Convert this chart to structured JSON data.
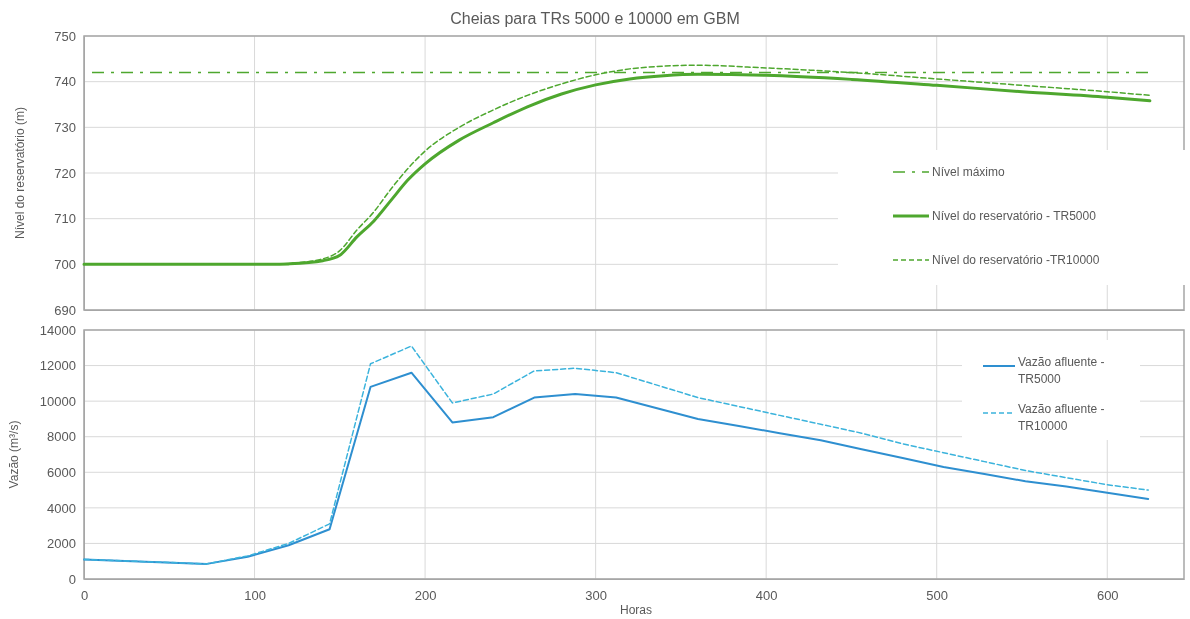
{
  "chart_data": [
    {
      "type": "line",
      "title": "Cheias para TRs 5000 e 10000 em GBM",
      "ylabel": "Nível do reservatório (m)",
      "xlim": [
        0,
        645
      ],
      "xticks": [
        0,
        100,
        200,
        300,
        400,
        500,
        600
      ],
      "ylim": [
        690,
        750
      ],
      "yticks": [
        690,
        700,
        710,
        720,
        730,
        740,
        750
      ],
      "tick_labels": "y",
      "grid": true,
      "legend": "right",
      "marker": "none",
      "ref_lines": [
        {
          "axis": "y",
          "value": 742,
          "label": "Nível máximo",
          "color": "#4ea72e",
          "line_style": "dashed"
        }
      ],
      "series": [
        {
          "name": "Nível do reservatório - TR5000",
          "color": "#4ea72e",
          "line_style": "solid",
          "x": [
            0,
            40,
            80,
            110,
            120,
            140,
            150,
            160,
            170,
            180,
            190,
            200,
            220,
            240,
            260,
            280,
            300,
            320,
            340,
            360,
            400,
            450,
            500,
            550,
            600,
            625
          ],
          "values": [
            700,
            700,
            700,
            700,
            700.1,
            700.8,
            702,
            706,
            709.5,
            714,
            718.5,
            722,
            727.2,
            731,
            734.5,
            737.3,
            739.3,
            740.6,
            741.3,
            741.6,
            741.4,
            740.5,
            739.2,
            737.8,
            736.6,
            735.8
          ]
        },
        {
          "name": "Nível do reservatório -TR10000",
          "color": "#4ea72e",
          "line_style": "dashed",
          "x": [
            0,
            40,
            80,
            110,
            120,
            140,
            150,
            160,
            170,
            180,
            190,
            200,
            220,
            240,
            260,
            280,
            300,
            320,
            340,
            360,
            400,
            450,
            500,
            550,
            600,
            625
          ],
          "values": [
            700,
            700,
            700,
            700,
            700.2,
            701.2,
            703,
            707.5,
            711.5,
            716.5,
            721,
            724.8,
            730,
            733.8,
            737,
            739.5,
            741.5,
            742.8,
            743.4,
            743.6,
            743,
            742,
            740.6,
            739.2,
            737.8,
            737
          ]
        }
      ]
    },
    {
      "type": "line",
      "xlabel": "Horas",
      "ylabel": "Vazão (m³/s)",
      "xlim": [
        0,
        645
      ],
      "xticks": [
        0,
        100,
        200,
        300,
        400,
        500,
        600
      ],
      "ylim": [
        0,
        14000
      ],
      "yticks": [
        0,
        2000,
        4000,
        6000,
        8000,
        10000,
        12000,
        14000
      ],
      "grid": true,
      "legend": "top right",
      "marker": "none",
      "series": [
        {
          "name": "Vazão afluente - TR5000",
          "color": "#2e8fd0",
          "line_style": "solid",
          "x": [
            0,
            72,
            96,
            120,
            144,
            168,
            192,
            216,
            240,
            264,
            288,
            312,
            336,
            360,
            384,
            408,
            432,
            456,
            480,
            504,
            528,
            552,
            576,
            600,
            624
          ],
          "values": [
            1100,
            850,
            1250,
            1900,
            2800,
            10800,
            11600,
            8800,
            9100,
            10200,
            10400,
            10200,
            9600,
            9000,
            8600,
            8200,
            7800,
            7300,
            6800,
            6300,
            5900,
            5500,
            5200,
            4850,
            4500
          ]
        },
        {
          "name": "Vazão afluente - TR10000",
          "color": "#3bb3dc",
          "line_style": "dashed",
          "x": [
            0,
            72,
            96,
            120,
            144,
            168,
            192,
            216,
            240,
            264,
            288,
            312,
            336,
            360,
            384,
            408,
            432,
            456,
            480,
            504,
            528,
            552,
            576,
            600,
            624
          ],
          "values": [
            1100,
            850,
            1300,
            2000,
            3100,
            12100,
            13100,
            9900,
            10400,
            11700,
            11850,
            11600,
            10900,
            10200,
            9700,
            9200,
            8700,
            8200,
            7600,
            7100,
            6600,
            6100,
            5700,
            5300,
            5000
          ]
        }
      ]
    }
  ]
}
